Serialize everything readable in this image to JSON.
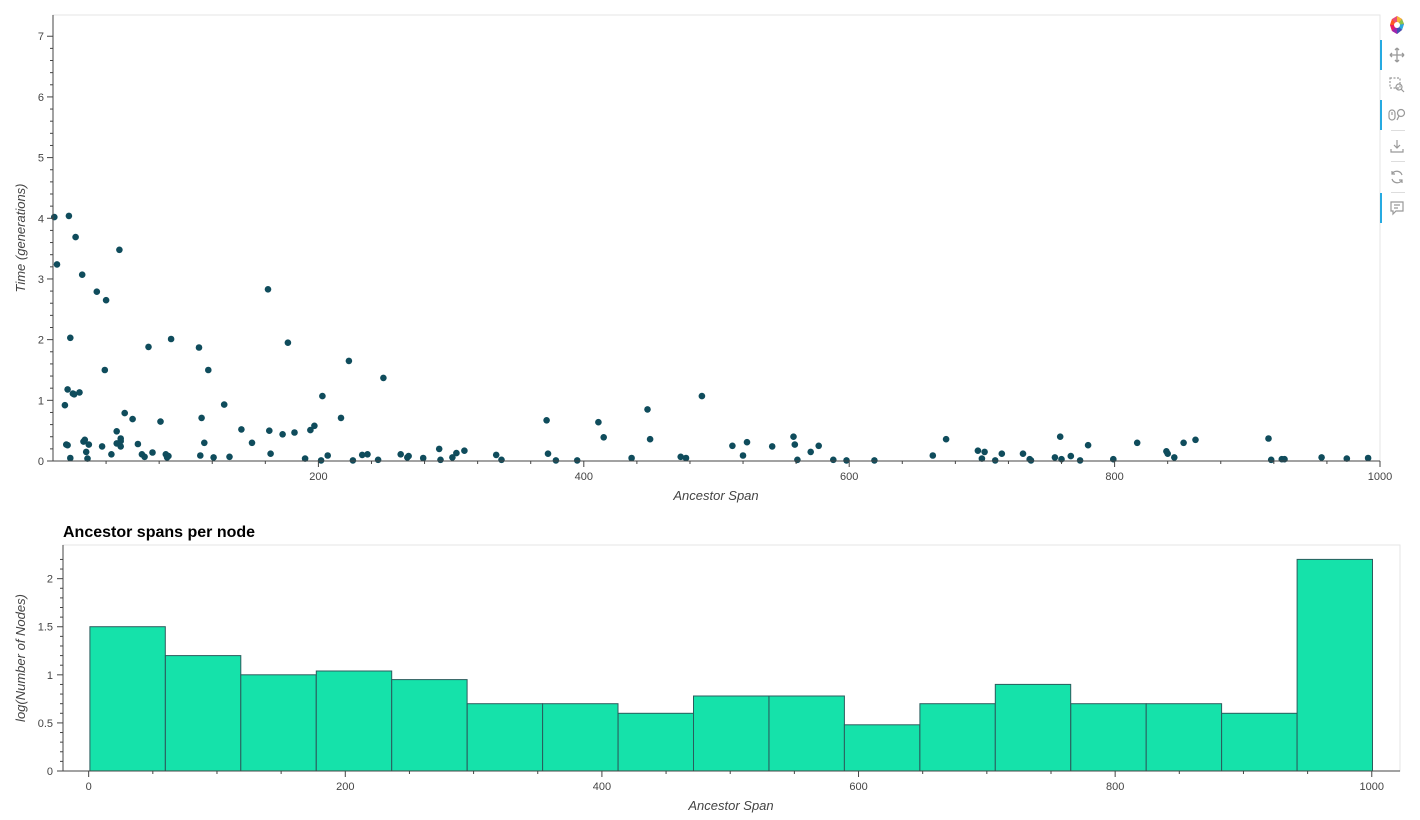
{
  "chart_data": [
    {
      "type": "scatter",
      "title": "",
      "xlabel": "Ancestor Span",
      "ylabel": "Time (generations)",
      "xlim": [
        0,
        1000
      ],
      "ylim": [
        0,
        7.35
      ],
      "xticks": [
        200,
        400,
        600,
        800,
        1000
      ],
      "yticks": [
        0,
        1,
        2,
        3,
        4,
        5,
        6,
        7
      ],
      "grid": false,
      "color": "#0f4c5c",
      "points": [
        [
          1,
          4.02
        ],
        [
          3,
          3.24
        ],
        [
          9,
          0.92
        ],
        [
          10,
          0.27
        ],
        [
          11,
          1.18
        ],
        [
          11,
          0.26
        ],
        [
          12,
          4.04
        ],
        [
          13,
          2.03
        ],
        [
          13,
          0.05
        ],
        [
          15,
          1.11
        ],
        [
          16,
          1.1
        ],
        [
          17,
          3.69
        ],
        [
          20,
          1.13
        ],
        [
          22,
          3.07
        ],
        [
          23,
          0.32
        ],
        [
          24,
          0.35
        ],
        [
          25,
          0.15
        ],
        [
          26,
          0.04
        ],
        [
          27,
          0.27
        ],
        [
          33,
          2.79
        ],
        [
          37,
          0.24
        ],
        [
          39,
          1.5
        ],
        [
          40,
          2.65
        ],
        [
          44,
          0.11
        ],
        [
          48,
          0.49
        ],
        [
          48,
          0.29
        ],
        [
          51,
          0.37
        ],
        [
          51,
          0.33
        ],
        [
          50,
          3.48
        ],
        [
          51,
          0.24
        ],
        [
          54,
          0.79
        ],
        [
          60,
          0.69
        ],
        [
          64,
          0.28
        ],
        [
          67,
          0.11
        ],
        [
          69,
          0.07
        ],
        [
          72,
          1.88
        ],
        [
          75,
          0.14
        ],
        [
          81,
          0.65
        ],
        [
          85,
          0.11
        ],
        [
          86,
          0.06
        ],
        [
          87,
          0.08
        ],
        [
          89,
          2.01
        ],
        [
          110,
          1.87
        ],
        [
          111,
          0.09
        ],
        [
          112,
          0.71
        ],
        [
          114,
          0.3
        ],
        [
          117,
          1.5
        ],
        [
          121,
          0.06
        ],
        [
          129,
          0.93
        ],
        [
          133,
          0.07
        ],
        [
          142,
          0.52
        ],
        [
          150,
          0.3
        ],
        [
          162,
          2.83
        ],
        [
          163,
          0.5
        ],
        [
          164,
          0.12
        ],
        [
          173,
          0.44
        ],
        [
          177,
          1.95
        ],
        [
          182,
          0.47
        ],
        [
          190,
          0.04
        ],
        [
          194,
          0.51
        ],
        [
          197,
          0.58
        ],
        [
          217,
          0.71
        ],
        [
          223,
          1.65
        ],
        [
          202,
          0.01
        ],
        [
          203,
          1.07
        ],
        [
          207,
          0.09
        ],
        [
          226,
          0.01
        ],
        [
          233,
          0.1
        ],
        [
          237,
          0.11
        ],
        [
          245,
          0.02
        ],
        [
          249,
          1.37
        ],
        [
          262,
          0.11
        ],
        [
          267,
          0.06
        ],
        [
          268,
          0.08
        ],
        [
          279,
          0.05
        ],
        [
          291,
          0.2
        ],
        [
          292,
          0.02
        ],
        [
          301,
          0.06
        ],
        [
          304,
          0.13
        ],
        [
          310,
          0.17
        ],
        [
          334,
          0.1
        ],
        [
          338,
          0.02
        ],
        [
          372,
          0.67
        ],
        [
          373,
          0.12
        ],
        [
          379,
          0.01
        ],
        [
          395,
          0.01
        ],
        [
          411,
          0.64
        ],
        [
          415,
          0.39
        ],
        [
          436,
          0.05
        ],
        [
          448,
          0.85
        ],
        [
          450,
          0.36
        ],
        [
          473,
          0.07
        ],
        [
          477,
          0.05
        ],
        [
          489,
          1.07
        ],
        [
          512,
          0.25
        ],
        [
          520,
          0.09
        ],
        [
          523,
          0.31
        ],
        [
          542,
          0.24
        ],
        [
          558,
          0.4
        ],
        [
          559,
          0.27
        ],
        [
          561,
          0.02
        ],
        [
          571,
          0.15
        ],
        [
          577,
          0.25
        ],
        [
          588,
          0.02
        ],
        [
          598,
          0.01
        ],
        [
          619,
          0.01
        ],
        [
          663,
          0.09
        ],
        [
          673,
          0.36
        ],
        [
          697,
          0.17
        ],
        [
          700,
          0.04
        ],
        [
          702,
          0.15
        ],
        [
          710,
          0.01
        ],
        [
          715,
          0.12
        ],
        [
          731,
          0.12
        ],
        [
          736,
          0.03
        ],
        [
          737,
          0.01
        ],
        [
          755,
          0.06
        ],
        [
          759,
          0.4
        ],
        [
          760,
          0.03
        ],
        [
          767,
          0.08
        ],
        [
          774,
          0.01
        ],
        [
          780,
          0.26
        ],
        [
          799,
          0.03
        ],
        [
          817,
          0.3
        ],
        [
          839,
          0.16
        ],
        [
          840,
          0.12
        ],
        [
          845,
          0.06
        ],
        [
          852,
          0.3
        ],
        [
          861,
          0.35
        ],
        [
          916,
          0.37
        ],
        [
          918,
          0.02
        ],
        [
          926,
          0.03
        ],
        [
          928,
          0.03
        ],
        [
          956,
          0.06
        ],
        [
          975,
          0.04
        ],
        [
          991,
          0.05
        ]
      ]
    },
    {
      "type": "bar",
      "title": "Ancestor spans per node",
      "xlabel": "Ancestor Span",
      "ylabel": "log(Number of Nodes)",
      "xlim": [
        -20,
        1022
      ],
      "ylim": [
        0,
        2.35
      ],
      "xticks": [
        0,
        200,
        400,
        600,
        800,
        1000
      ],
      "yticks": [
        0,
        0.5,
        1,
        1.5,
        2
      ],
      "ytick_labels": [
        "0",
        "0.5",
        "1",
        "1.5",
        "2"
      ],
      "grid": false,
      "color": "#15e2aa",
      "edge_color": "#2a5d5d",
      "bin_edges": [
        1,
        59.8,
        118.6,
        177.4,
        236.2,
        295,
        353.8,
        412.6,
        471.4,
        530.2,
        589,
        647.8,
        706.6,
        765.4,
        824.2,
        883,
        941.8,
        1000.6
      ],
      "values": [
        1.5,
        1.2,
        1.0,
        1.04,
        0.95,
        0.7,
        0.7,
        0.6,
        0.78,
        0.78,
        0.48,
        0.7,
        0.9,
        0.7,
        0.7,
        0.6,
        2.2
      ]
    }
  ],
  "toolbar": {
    "logo_icon": "bokeh-logo-icon",
    "buttons": [
      {
        "name": "pan-icon",
        "active": true
      },
      {
        "name": "box-zoom-icon",
        "active": false
      },
      {
        "name": "wheel-zoom-icon",
        "active": true
      },
      {
        "name": "save-icon",
        "active": false
      },
      {
        "name": "reset-icon",
        "active": false
      },
      {
        "name": "hover-icon",
        "active": true
      }
    ]
  }
}
